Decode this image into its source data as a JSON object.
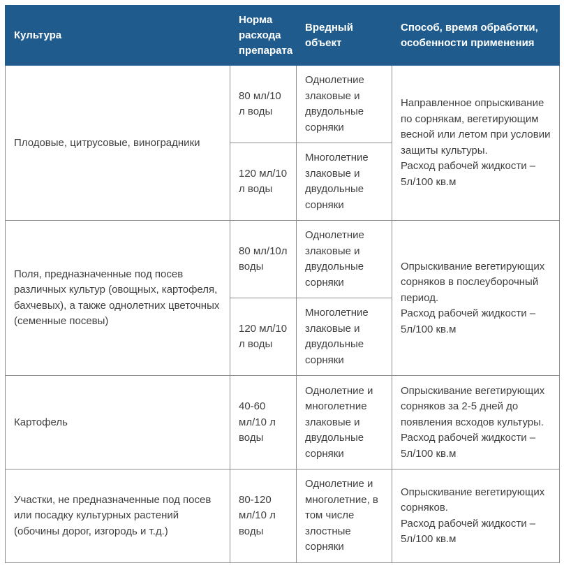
{
  "colors": {
    "header-bg": "#1f5c8d",
    "header-text": "#ffffff",
    "body-text": "#3f3f3f",
    "border": "#8c8c8c"
  },
  "table": {
    "headers": [
      "Культура",
      "Норма расхода препарата",
      "Вредный объект",
      "Способ, время обработки, особенности применения"
    ],
    "groups": [
      {
        "culture": "Плодовые, цитрусовые, виноградники",
        "method": "Направленное опрыскивание по сорнякам, вегетирующим весной или летом при условии защиты культуры.\nРасход рабочей жидкости – 5л/100 кв.м",
        "rows": [
          {
            "dose": "80 мл/10 л воды",
            "pest": "Однолетние злаковые и двудольные сорняки"
          },
          {
            "dose": "120 мл/10 л воды",
            "pest": "Многолетние злаковые и двудольные сорняки"
          }
        ]
      },
      {
        "culture": "Поля, предназначенные под посев различных культур (овощных, картофеля, бахчевых), а также однолетних цветочных (семенные посевы)",
        "method": "Опрыскивание вегетирующих сорняков в послеуборочный период.\nРасход рабочей жидкости – 5л/100 кв.м",
        "rows": [
          {
            "dose": "80 мл/10л воды",
            "pest": "Однолетние злаковые и двудольные сорняки"
          },
          {
            "dose": "120 мл/10 л воды",
            "pest": "Многолетние злаковые и двудольные сорняки"
          }
        ]
      },
      {
        "culture": "Картофель",
        "method": "Опрыскивание вегетирующих сорняков за 2-5 дней до появления всходов культуры.\nРасход рабочей жидкости – 5л/100 кв.м",
        "rows": [
          {
            "dose": "40-60 мл/10 л воды",
            "pest": "Однолетние и многолетние злаковые и двудольные сорняки"
          }
        ]
      },
      {
        "culture": "Участки, не предназначенные под посев или посадку культурных растений (обочины дорог, изгородь и т.д.)",
        "method": "Опрыскивание вегетирующих сорняков.\nРасход рабочей жидкости – 5л/100 кв.м",
        "rows": [
          {
            "dose": "80-120 мл/10 л воды",
            "pest": "Однолетние и многолетние, в том числе злостные сорняки"
          }
        ]
      }
    ]
  }
}
